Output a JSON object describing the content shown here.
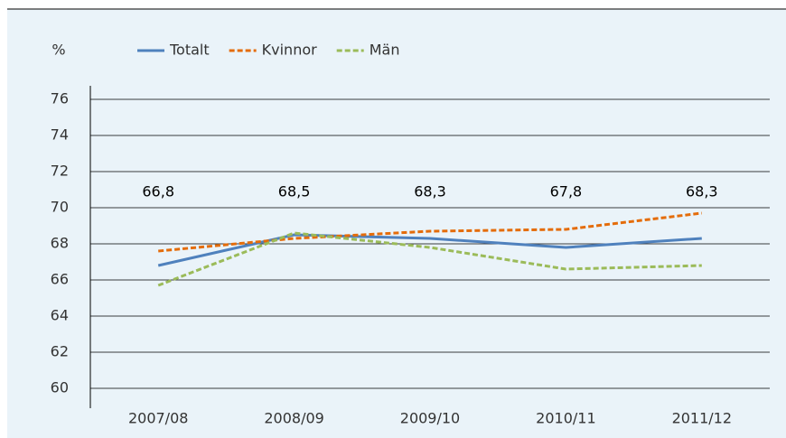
{
  "chart_data": {
    "type": "line",
    "y_label": "%",
    "categories": [
      "2007/08",
      "2008/09",
      "2009/10",
      "2010/11",
      "2011/12"
    ],
    "series": [
      {
        "name": "Totalt",
        "color": "#4f81bd",
        "dashed": false,
        "values": [
          66.8,
          68.5,
          68.3,
          67.8,
          68.3
        ],
        "value_labels": [
          "66,8",
          "68,5",
          "68,3",
          "67,8",
          "68,3"
        ]
      },
      {
        "name": "Kvinnor",
        "color": "#e46c0a",
        "dashed": true,
        "values": [
          67.6,
          68.3,
          68.7,
          68.8,
          69.7
        ]
      },
      {
        "name": "Män",
        "color": "#9bbb59",
        "dashed": true,
        "values": [
          65.7,
          68.6,
          67.8,
          66.6,
          66.8
        ]
      }
    ],
    "ylim": [
      60,
      76
    ],
    "yticks": [
      60,
      62,
      64,
      66,
      68,
      70,
      72,
      74,
      76
    ],
    "grid": true
  }
}
